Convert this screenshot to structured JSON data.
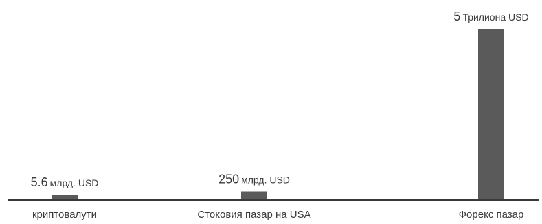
{
  "chart_data": {
    "type": "bar",
    "title": "",
    "xlabel": "",
    "ylabel": "",
    "categories": [
      "криптовалути",
      "Стоковия пазар на USA",
      "Форекс пазар"
    ],
    "values": [
      5.6,
      250,
      5000
    ],
    "value_unit": "млрд. USD",
    "ylim": [
      0,
      5000
    ],
    "grid": false,
    "legend": "none",
    "bar_color": "#5a5a5a",
    "data_labels": [
      {
        "number": "5.6",
        "unit": "млрд. USD"
      },
      {
        "number": "250",
        "unit": "млрд. USD"
      },
      {
        "number": "5",
        "unit": "Трилиона USD"
      }
    ]
  }
}
